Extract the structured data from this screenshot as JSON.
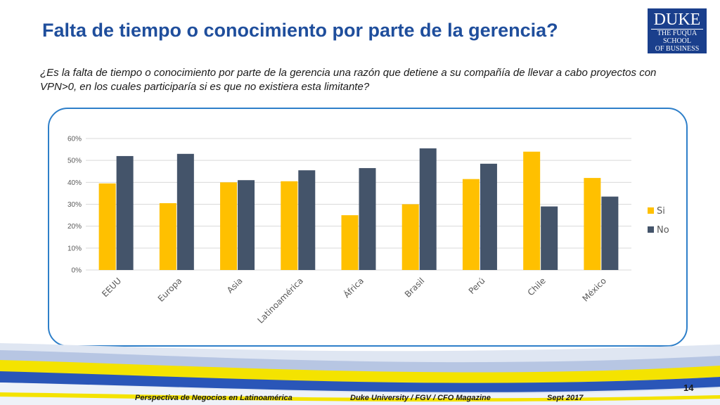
{
  "slide": {
    "title": "Falta de tiempo o conocimiento por parte de la gerencia?",
    "question": "¿Es la falta de tiempo o conocimiento por parte de la gerencia una razón que detiene a su compañía de llevar a cabo proyectos con VPN>0, en los cuales participaría si es que no existiera esta limitante?",
    "page_number": "14"
  },
  "logo": {
    "line1": "DUKE",
    "line2": "THE FUQUA",
    "line3": "SCHOOL",
    "line4": "OF BUSINESS"
  },
  "footer": {
    "left": "Perspectiva de Negocios en Latinoamérica",
    "center": "Duke University / FGV / CFO Magazine",
    "right": "Sept 2017"
  },
  "colors": {
    "si": "#FFC000",
    "no": "#44546A",
    "title": "#1F4E9C",
    "frame": "#2E7FC9"
  },
  "chart_data": {
    "type": "bar",
    "title": "",
    "xlabel": "",
    "ylabel": "",
    "categories": [
      "EEUU",
      "Europa",
      "Asia",
      "Latinoamérica",
      "África",
      "Brasil",
      "Perú",
      "Chile",
      "México"
    ],
    "series": [
      {
        "name": "Si",
        "values": [
          39.5,
          30.5,
          40,
          40.5,
          25,
          30,
          41.5,
          54,
          42
        ]
      },
      {
        "name": "No",
        "values": [
          52,
          53,
          41,
          45.5,
          46.5,
          55.5,
          48.5,
          29,
          33.5
        ]
      }
    ],
    "ylim": [
      0,
      60
    ],
    "yticks": [
      "0%",
      "10%",
      "20%",
      "30%",
      "40%",
      "50%",
      "60%"
    ],
    "grid": true,
    "legend_position": "right"
  }
}
